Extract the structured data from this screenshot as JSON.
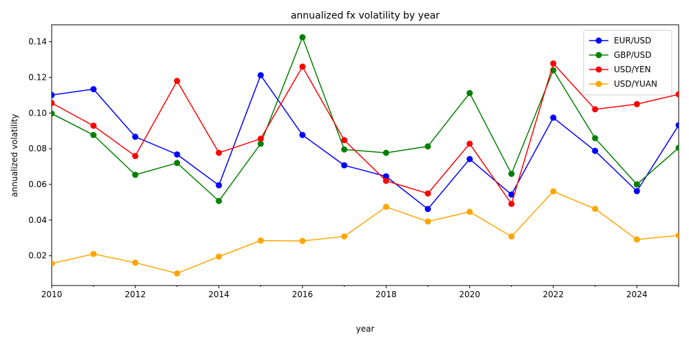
{
  "chart_data": {
    "type": "line",
    "title": "annualized fx volatility by year",
    "xlabel": "year",
    "ylabel": "annualized volatility",
    "x": [
      2010,
      2011,
      2012,
      2013,
      2014,
      2015,
      2016,
      2017,
      2018,
      2019,
      2020,
      2021,
      2022,
      2023,
      2024,
      2025
    ],
    "xlim": [
      2010,
      2025
    ],
    "ylim": [
      0.0033,
      0.1495
    ],
    "xticks": [
      "2010",
      "2012",
      "2014",
      "2016",
      "2018",
      "2020",
      "2022",
      "2024"
    ],
    "xtick_values": [
      2010,
      2012,
      2014,
      2016,
      2018,
      2020,
      2022,
      2024
    ],
    "yticks": [
      "0.02",
      "0.04",
      "0.06",
      "0.08",
      "0.10",
      "0.12",
      "0.14"
    ],
    "ytick_values": [
      0.02,
      0.04,
      0.06,
      0.08,
      0.1,
      0.12,
      0.14
    ],
    "grid": false,
    "legend_position": "top-right",
    "series": [
      {
        "name": "EUR/USD",
        "color": "#0000ff",
        "values": [
          0.1101,
          0.1134,
          0.0867,
          0.0768,
          0.0595,
          0.1212,
          0.0877,
          0.0707,
          0.0645,
          0.0462,
          0.0742,
          0.0543,
          0.0974,
          0.0788,
          0.0562,
          0.0932
        ]
      },
      {
        "name": "GBP/USD",
        "color": "#008000",
        "values": [
          0.0997,
          0.0877,
          0.0654,
          0.072,
          0.0507,
          0.0828,
          0.1425,
          0.0796,
          0.0777,
          0.0813,
          0.1112,
          0.0659,
          0.124,
          0.0859,
          0.06,
          0.0805
        ]
      },
      {
        "name": "USD/YEN",
        "color": "#ff0000",
        "values": [
          0.1056,
          0.0929,
          0.0759,
          0.118,
          0.0777,
          0.0856,
          0.126,
          0.0848,
          0.062,
          0.0549,
          0.0828,
          0.0491,
          0.1278,
          0.1021,
          0.105,
          0.1105
        ]
      },
      {
        "name": "USD/YUAN",
        "color": "#ffa500",
        "values": [
          0.0156,
          0.021,
          0.0161,
          0.0101,
          0.0195,
          0.0285,
          0.0283,
          0.0308,
          0.0474,
          0.0392,
          0.0446,
          0.0308,
          0.0561,
          0.0463,
          0.0291,
          0.0314
        ]
      }
    ]
  }
}
